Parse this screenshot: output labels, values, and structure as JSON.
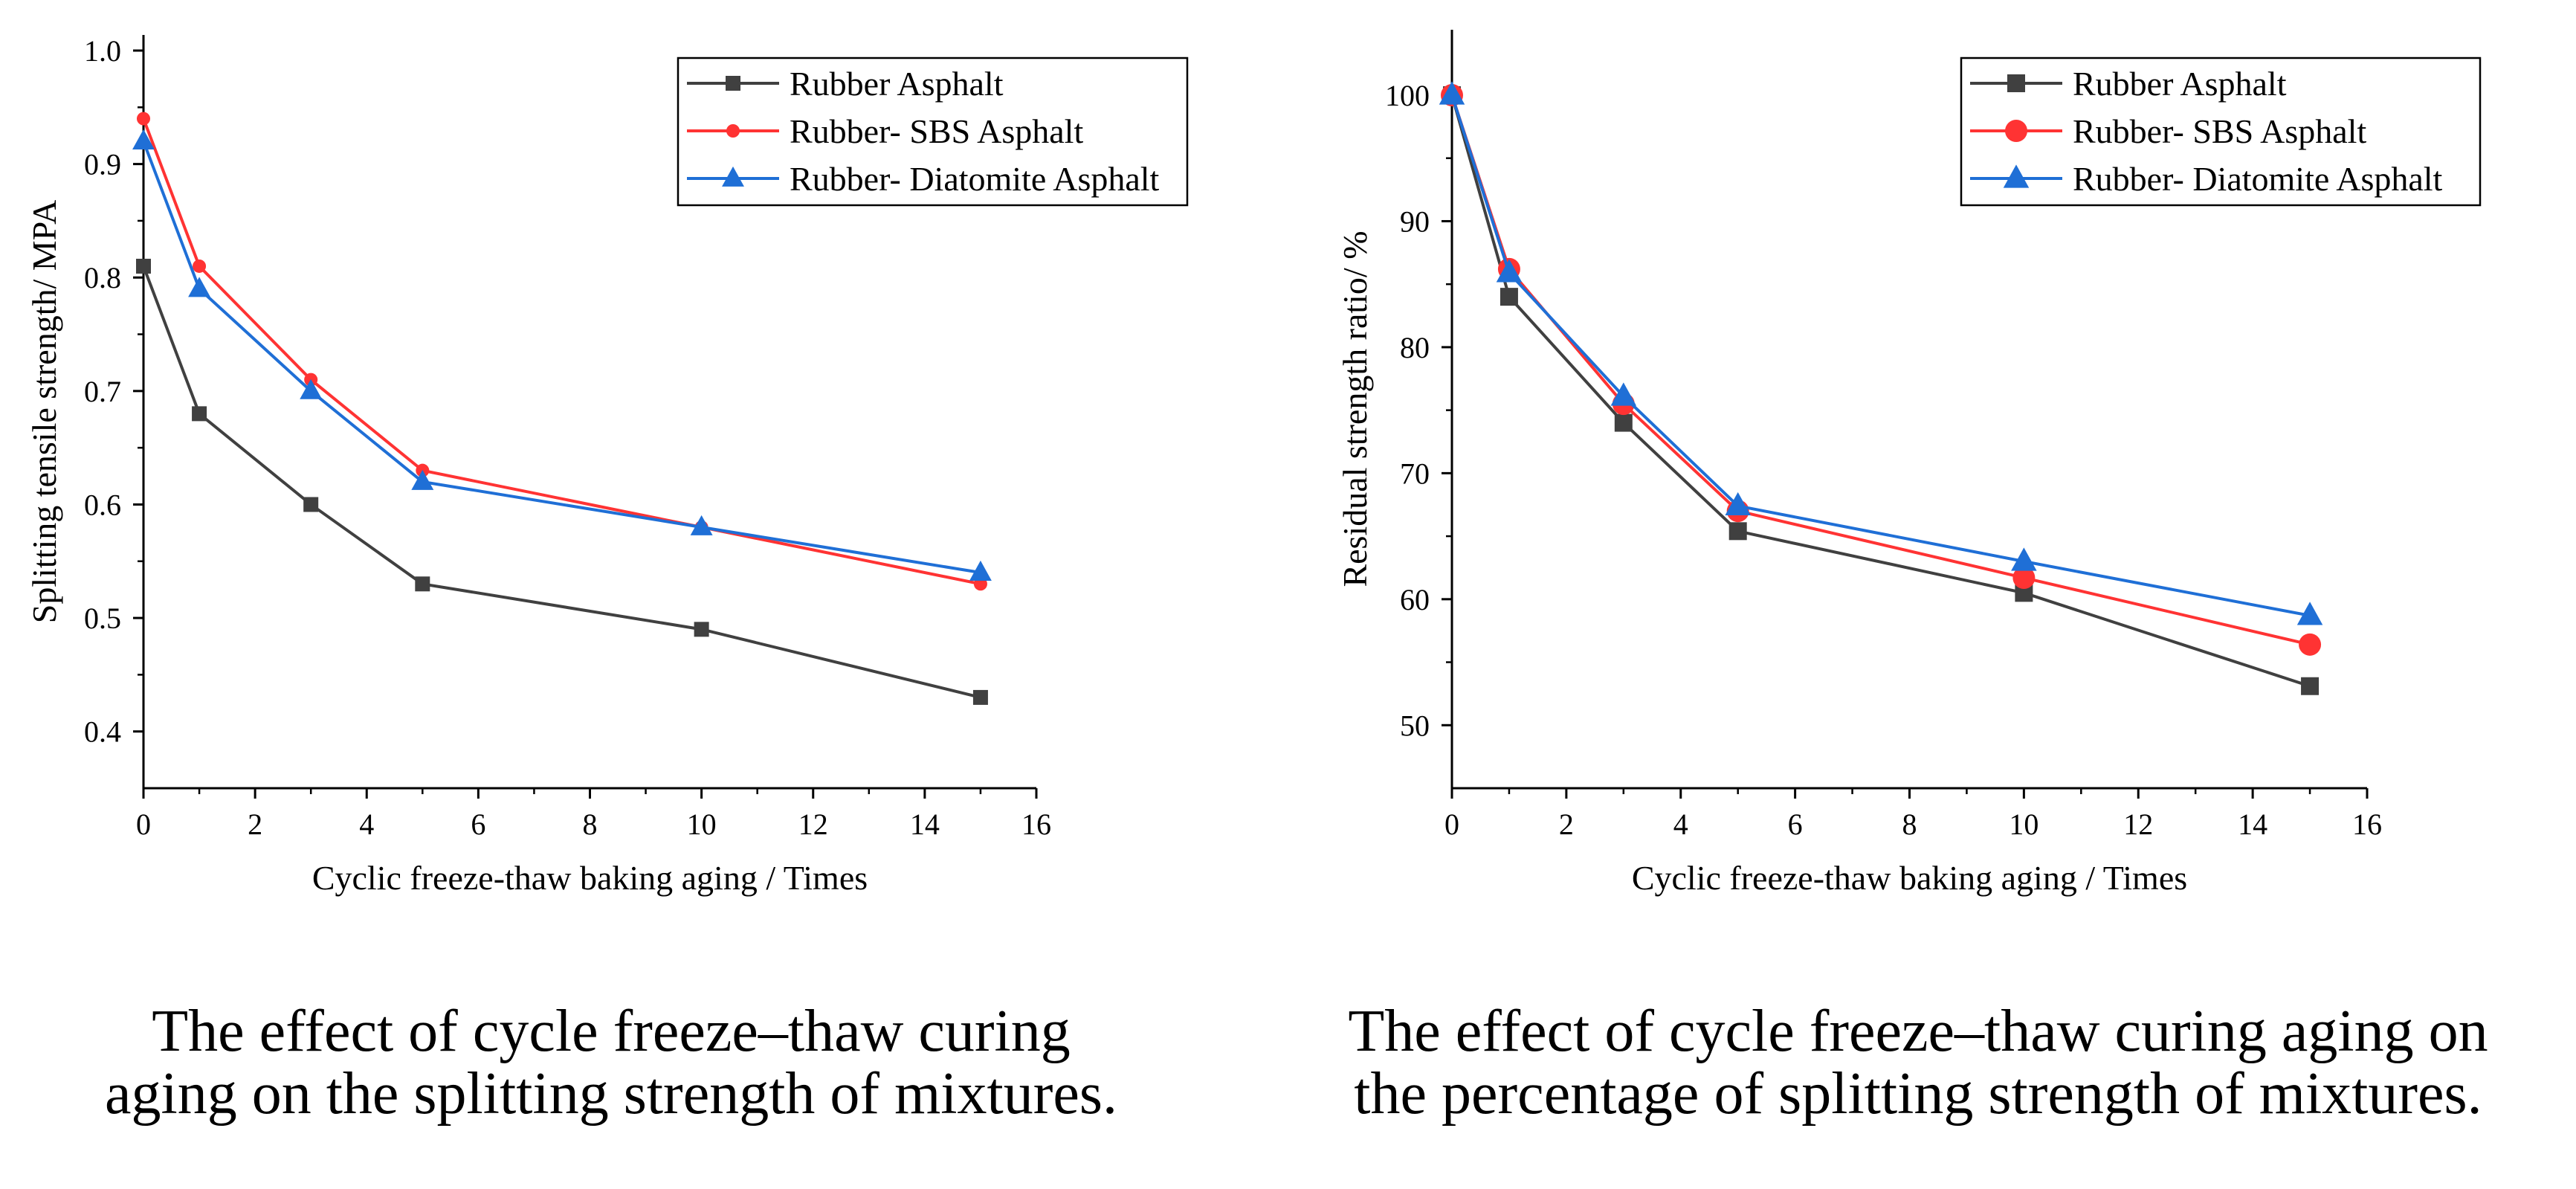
{
  "chart_data": [
    {
      "type": "line",
      "title": "",
      "xlabel": "Cyclic freeze-thaw baking aging / Times",
      "ylabel": "Splitting tensile strength/ MPA",
      "xlim": [
        0,
        16
      ],
      "ylim": [
        0.35,
        1.0
      ],
      "xticks": [
        0,
        2,
        4,
        6,
        8,
        10,
        12,
        14,
        16
      ],
      "xtick_labels": [
        "0",
        "2",
        "4",
        "6",
        "8",
        "10",
        "12",
        "14",
        "16"
      ],
      "yticks": [
        0.4,
        0.5,
        0.6,
        0.7,
        0.8,
        0.9,
        1.0
      ],
      "ytick_labels": [
        "0.4",
        "0.5",
        "0.6",
        "0.7",
        "0.8",
        "0.9",
        "1.0"
      ],
      "grid": false,
      "legend_position": "top-right",
      "x": [
        0,
        1,
        3,
        5,
        10,
        15
      ],
      "series": [
        {
          "name": "Rubber Asphalt",
          "color": "#404040",
          "marker": "square",
          "values": [
            0.81,
            0.68,
            0.6,
            0.53,
            0.49,
            0.43
          ]
        },
        {
          "name": "Rubber- SBS Asphalt",
          "color": "#ff3333",
          "marker": "circle",
          "values": [
            0.94,
            0.81,
            0.71,
            0.63,
            0.58,
            0.53
          ]
        },
        {
          "name": "Rubber- Diatomite Asphalt",
          "color": "#1f6fd6",
          "marker": "triangle",
          "values": [
            0.92,
            0.79,
            0.7,
            0.62,
            0.58,
            0.54
          ]
        }
      ],
      "caption": [
        "The effect of cycle freeze–thaw curing",
        "aging on the splitting strength of mixtures."
      ]
    },
    {
      "type": "line",
      "title": "",
      "xlabel": "Cyclic freeze-thaw baking aging / Times",
      "ylabel": "Residual strength ratio/ %",
      "xlim": [
        0,
        16
      ],
      "ylim": [
        45,
        105
      ],
      "xticks": [
        0,
        2,
        4,
        6,
        8,
        10,
        12,
        14,
        16
      ],
      "xtick_labels": [
        "0",
        "2",
        "4",
        "6",
        "8",
        "10",
        "12",
        "14",
        "16"
      ],
      "yticks": [
        50,
        60,
        70,
        80,
        90,
        100
      ],
      "ytick_labels": [
        "50",
        "60",
        "70",
        "80",
        "90",
        "100"
      ],
      "grid": false,
      "legend_position": "top-right",
      "x": [
        0,
        1,
        3,
        5,
        10,
        15
      ],
      "series": [
        {
          "name": "Rubber Asphalt",
          "color": "#404040",
          "marker": "square",
          "values": [
            100,
            84,
            74,
            65.4,
            60.5,
            53.1
          ]
        },
        {
          "name": "Rubber- SBS Asphalt",
          "color": "#ff3333",
          "marker": "circle",
          "values": [
            100,
            86.2,
            75.5,
            67,
            61.7,
            56.4
          ]
        },
        {
          "name": "Rubber- Diatomite Asphalt",
          "color": "#1f6fd6",
          "marker": "triangle",
          "values": [
            100,
            85.9,
            76.1,
            67.4,
            63,
            58.7
          ]
        }
      ],
      "caption": [
        "The effect of cycle freeze–thaw curing aging on",
        "the percentage of splitting strength of mixtures."
      ]
    }
  ]
}
